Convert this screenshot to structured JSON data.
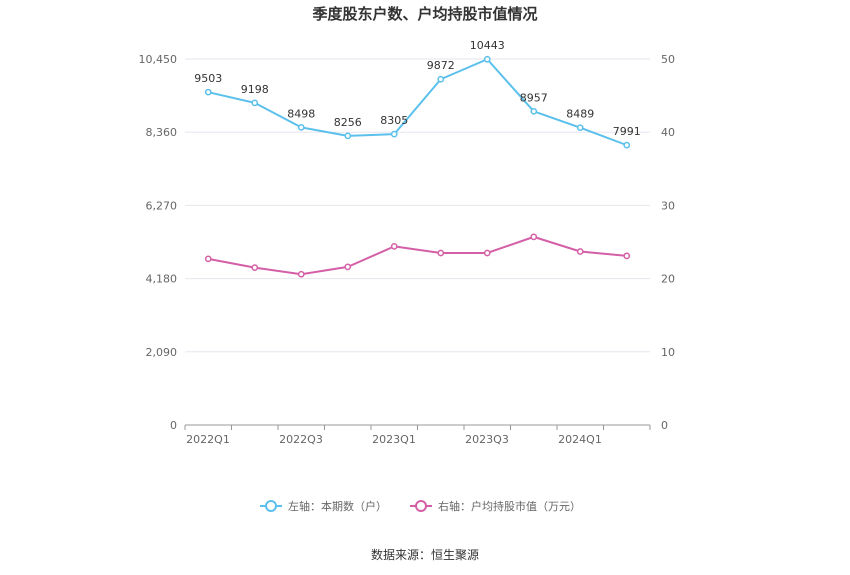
{
  "chart_data": {
    "type": "line",
    "title": "季度股东户数、户均持股市值情况",
    "categories": [
      "2022Q1",
      "2022Q2",
      "2022Q3",
      "2022Q4",
      "2023Q1",
      "2023Q2",
      "2023Q3",
      "2023Q4",
      "2024Q1",
      "2024Q2"
    ],
    "x_tick_labels": [
      "2022Q1",
      "2022Q3",
      "2023Q1",
      "2023Q3",
      "2024Q1"
    ],
    "left_axis": {
      "ticks": [
        "0",
        "2,090",
        "4,180",
        "6,270",
        "8,360",
        "10,450"
      ],
      "ylim": [
        0,
        10450
      ]
    },
    "right_axis": {
      "ticks": [
        "0",
        "10",
        "20",
        "30",
        "40",
        "50"
      ],
      "ylim": [
        0,
        50
      ]
    },
    "series": [
      {
        "name": "左轴：本期数（户）",
        "axis": "left",
        "color": "#5bc0eb",
        "values": [
          9503,
          9198,
          8498,
          8256,
          8305,
          9872,
          10443,
          8957,
          8489,
          7991
        ],
        "labels": [
          "9503",
          "9198",
          "8498",
          "8256",
          "8305",
          "9872",
          "10443",
          "8957",
          "8489",
          "7991"
        ]
      },
      {
        "name": "右轴：户均持股市值（万元）",
        "axis": "right",
        "color": "#d45fa6",
        "values": [
          22.7,
          21.5,
          20.6,
          21.6,
          24.4,
          23.5,
          23.5,
          25.7,
          23.7,
          23.1
        ]
      }
    ],
    "grid": true,
    "legend_position": "bottom"
  },
  "source": "数据来源：恒生聚源"
}
